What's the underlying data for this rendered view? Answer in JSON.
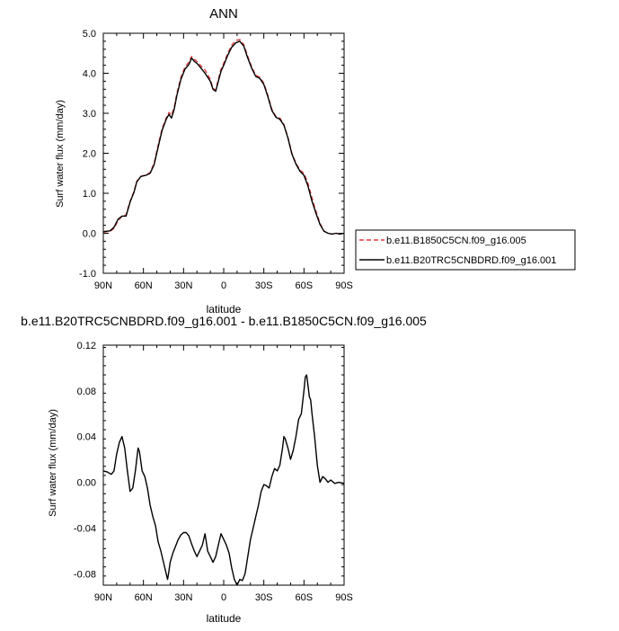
{
  "chart_data": [
    {
      "type": "line",
      "title": "ANN",
      "xlabel": "latitude",
      "ylabel": "Surf water flux (mm/day)",
      "xlim": [
        90,
        -90
      ],
      "ylim": [
        -1.0,
        5.0
      ],
      "x_ticks": [
        90,
        60,
        30,
        0,
        -30,
        -60,
        -90
      ],
      "x_tick_labels": [
        "90N",
        "60N",
        "30N",
        "0",
        "30S",
        "60S",
        "90S"
      ],
      "y_ticks": [
        -1,
        0,
        1,
        2,
        3,
        4,
        5
      ],
      "y_tick_labels": [
        "-1.0",
        "0.0",
        "1.0",
        "2.0",
        "3.0",
        "4.0",
        "5.0"
      ],
      "legend_position": "right",
      "series": [
        {
          "name": "b.e11.B1850C5CN.f09_g16.005",
          "color": "#e03a3a",
          "dash": "dashed",
          "points": [
            [
              90,
              0.03
            ],
            [
              85,
              0.05
            ],
            [
              82,
              0.12
            ],
            [
              79,
              0.32
            ],
            [
              76,
              0.42
            ],
            [
              73,
              0.46
            ],
            [
              70,
              0.8
            ],
            [
              67,
              1.05
            ],
            [
              65,
              1.3
            ],
            [
              62,
              1.42
            ],
            [
              58,
              1.46
            ],
            [
              55,
              1.52
            ],
            [
              52,
              1.75
            ],
            [
              49,
              2.2
            ],
            [
              46,
              2.62
            ],
            [
              43,
              2.88
            ],
            [
              41,
              3.02
            ],
            [
              39,
              2.95
            ],
            [
              37,
              3.15
            ],
            [
              35,
              3.5
            ],
            [
              32,
              3.9
            ],
            [
              29,
              4.15
            ],
            [
              26,
              4.28
            ],
            [
              24,
              4.42
            ],
            [
              22,
              4.35
            ],
            [
              20,
              4.3
            ],
            [
              18,
              4.22
            ],
            [
              14,
              4.08
            ],
            [
              10,
              3.85
            ],
            [
              8,
              3.62
            ],
            [
              6,
              3.58
            ],
            [
              4,
              3.85
            ],
            [
              2,
              4.1
            ],
            [
              0,
              4.25
            ],
            [
              -3,
              4.5
            ],
            [
              -6,
              4.7
            ],
            [
              -9,
              4.82
            ],
            [
              -12,
              4.84
            ],
            [
              -15,
              4.72
            ],
            [
              -18,
              4.42
            ],
            [
              -21,
              4.15
            ],
            [
              -24,
              3.95
            ],
            [
              -27,
              3.9
            ],
            [
              -30,
              3.75
            ],
            [
              -33,
              3.45
            ],
            [
              -36,
              3.1
            ],
            [
              -39,
              2.92
            ],
            [
              -42,
              2.88
            ],
            [
              -45,
              2.72
            ],
            [
              -48,
              2.4
            ],
            [
              -51,
              2.0
            ],
            [
              -54,
              1.75
            ],
            [
              -57,
              1.58
            ],
            [
              -60,
              1.5
            ],
            [
              -63,
              1.25
            ],
            [
              -66,
              0.88
            ],
            [
              -69,
              0.55
            ],
            [
              -72,
              0.25
            ],
            [
              -75,
              0.05
            ],
            [
              -78,
              0.0
            ],
            [
              -81,
              -0.02
            ],
            [
              -84,
              0.0
            ],
            [
              -87,
              -0.02
            ],
            [
              -90,
              0.0
            ]
          ]
        },
        {
          "name": "b.e11.B20TRC5CNBDRD.f09_g16.001",
          "color": "#000000",
          "dash": "solid",
          "points": [
            [
              90,
              0.04
            ],
            [
              85,
              0.06
            ],
            [
              82,
              0.15
            ],
            [
              79,
              0.35
            ],
            [
              76,
              0.43
            ],
            [
              73,
              0.43
            ],
            [
              70,
              0.78
            ],
            [
              67,
              1.03
            ],
            [
              65,
              1.28
            ],
            [
              62,
              1.42
            ],
            [
              58,
              1.45
            ],
            [
              55,
              1.5
            ],
            [
              52,
              1.72
            ],
            [
              49,
              2.15
            ],
            [
              46,
              2.58
            ],
            [
              43,
              2.85
            ],
            [
              41,
              2.97
            ],
            [
              39,
              2.88
            ],
            [
              37,
              3.1
            ],
            [
              35,
              3.45
            ],
            [
              32,
              3.85
            ],
            [
              29,
              4.1
            ],
            [
              26,
              4.22
            ],
            [
              24,
              4.38
            ],
            [
              22,
              4.3
            ],
            [
              20,
              4.25
            ],
            [
              18,
              4.17
            ],
            [
              14,
              4.0
            ],
            [
              10,
              3.8
            ],
            [
              8,
              3.6
            ],
            [
              6,
              3.55
            ],
            [
              4,
              3.8
            ],
            [
              2,
              4.05
            ],
            [
              0,
              4.2
            ],
            [
              -3,
              4.45
            ],
            [
              -6,
              4.65
            ],
            [
              -9,
              4.76
            ],
            [
              -12,
              4.8
            ],
            [
              -15,
              4.68
            ],
            [
              -18,
              4.38
            ],
            [
              -21,
              4.12
            ],
            [
              -24,
              3.92
            ],
            [
              -27,
              3.87
            ],
            [
              -30,
              3.72
            ],
            [
              -33,
              3.42
            ],
            [
              -36,
              3.07
            ],
            [
              -39,
              2.9
            ],
            [
              -42,
              2.85
            ],
            [
              -45,
              2.7
            ],
            [
              -48,
              2.38
            ],
            [
              -51,
              1.98
            ],
            [
              -54,
              1.73
            ],
            [
              -57,
              1.55
            ],
            [
              -60,
              1.45
            ],
            [
              -63,
              1.18
            ],
            [
              -66,
              0.8
            ],
            [
              -69,
              0.5
            ],
            [
              -72,
              0.22
            ],
            [
              -75,
              0.05
            ],
            [
              -78,
              0.0
            ],
            [
              -81,
              -0.02
            ],
            [
              -84,
              0.0
            ],
            [
              -87,
              -0.02
            ],
            [
              -90,
              0.0
            ]
          ]
        }
      ]
    },
    {
      "type": "line",
      "title": "b.e11.B20TRC5CNBDRD.f09_g16.001 - b.e11.B1850C5CN.f09_g16.005",
      "xlabel": "latitude",
      "ylabel": "Surf water flux (mm/day)",
      "xlim": [
        90,
        -90
      ],
      "ylim": [
        -0.09,
        0.12
      ],
      "x_ticks": [
        90,
        60,
        30,
        0,
        -30,
        -60,
        -90
      ],
      "x_tick_labels": [
        "90N",
        "60N",
        "30N",
        "0",
        "30S",
        "60S",
        "90S"
      ],
      "y_ticks": [
        -0.08,
        -0.04,
        0.0,
        0.04,
        0.08,
        0.12
      ],
      "y_tick_labels": [
        "-0.08",
        "-0.04",
        "0.00",
        "0.04",
        "0.08",
        "0.12"
      ],
      "series": [
        {
          "color": "#000000",
          "dash": "solid",
          "points": [
            [
              90,
              0.01
            ],
            [
              87,
              0.009
            ],
            [
              84,
              0.007
            ],
            [
              82,
              0.01
            ],
            [
              80,
              0.025
            ],
            [
              78,
              0.035
            ],
            [
              76,
              0.04
            ],
            [
              74,
              0.03
            ],
            [
              72,
              0.01
            ],
            [
              70,
              -0.008
            ],
            [
              68,
              -0.005
            ],
            [
              66,
              0.01
            ],
            [
              64,
              0.03
            ],
            [
              63,
              0.027
            ],
            [
              61,
              0.01
            ],
            [
              59,
              0.005
            ],
            [
              57,
              -0.005
            ],
            [
              55,
              -0.02
            ],
            [
              53,
              -0.03
            ],
            [
              51,
              -0.038
            ],
            [
              49,
              -0.052
            ],
            [
              47,
              -0.06
            ],
            [
              45,
              -0.07
            ],
            [
              43,
              -0.08
            ],
            [
              42,
              -0.085
            ],
            [
              41,
              -0.078
            ],
            [
              40,
              -0.07
            ],
            [
              38,
              -0.062
            ],
            [
              36,
              -0.056
            ],
            [
              34,
              -0.05
            ],
            [
              32,
              -0.046
            ],
            [
              30,
              -0.044
            ],
            [
              28,
              -0.044
            ],
            [
              26,
              -0.047
            ],
            [
              24,
              -0.054
            ],
            [
              22,
              -0.06
            ],
            [
              20,
              -0.065
            ],
            [
              18,
              -0.06
            ],
            [
              16,
              -0.055
            ],
            [
              14,
              -0.045
            ],
            [
              13,
              -0.052
            ],
            [
              12,
              -0.06
            ],
            [
              10,
              -0.065
            ],
            [
              8,
              -0.07
            ],
            [
              6,
              -0.065
            ],
            [
              4,
              -0.055
            ],
            [
              2,
              -0.045
            ],
            [
              0,
              -0.05
            ],
            [
              -2,
              -0.055
            ],
            [
              -4,
              -0.062
            ],
            [
              -6,
              -0.075
            ],
            [
              -8,
              -0.085
            ],
            [
              -10,
              -0.09
            ],
            [
              -12,
              -0.085
            ],
            [
              -14,
              -0.086
            ],
            [
              -16,
              -0.08
            ],
            [
              -18,
              -0.065
            ],
            [
              -20,
              -0.05
            ],
            [
              -22,
              -0.04
            ],
            [
              -24,
              -0.03
            ],
            [
              -26,
              -0.02
            ],
            [
              -28,
              -0.008
            ],
            [
              -30,
              -0.002
            ],
            [
              -32,
              -0.003
            ],
            [
              -34,
              -0.005
            ],
            [
              -36,
              0.005
            ],
            [
              -38,
              0.012
            ],
            [
              -40,
              0.01
            ],
            [
              -42,
              0.015
            ],
            [
              -44,
              0.03
            ],
            [
              -45,
              0.04
            ],
            [
              -46,
              0.038
            ],
            [
              -48,
              0.03
            ],
            [
              -50,
              0.02
            ],
            [
              -52,
              0.028
            ],
            [
              -54,
              0.04
            ],
            [
              -56,
              0.055
            ],
            [
              -58,
              0.06
            ],
            [
              -60,
              0.08
            ],
            [
              -61,
              0.092
            ],
            [
              -62,
              0.094
            ],
            [
              -63,
              0.085
            ],
            [
              -64,
              0.075
            ],
            [
              -65,
              0.072
            ],
            [
              -66,
              0.06
            ],
            [
              -68,
              0.04
            ],
            [
              -70,
              0.015
            ],
            [
              -72,
              0.0
            ],
            [
              -74,
              0.005
            ],
            [
              -76,
              0.003
            ],
            [
              -78,
              0.0
            ],
            [
              -80,
              0.002
            ],
            [
              -83,
              -0.001
            ],
            [
              -86,
              0.0
            ],
            [
              -90,
              -0.001
            ]
          ]
        }
      ]
    }
  ]
}
